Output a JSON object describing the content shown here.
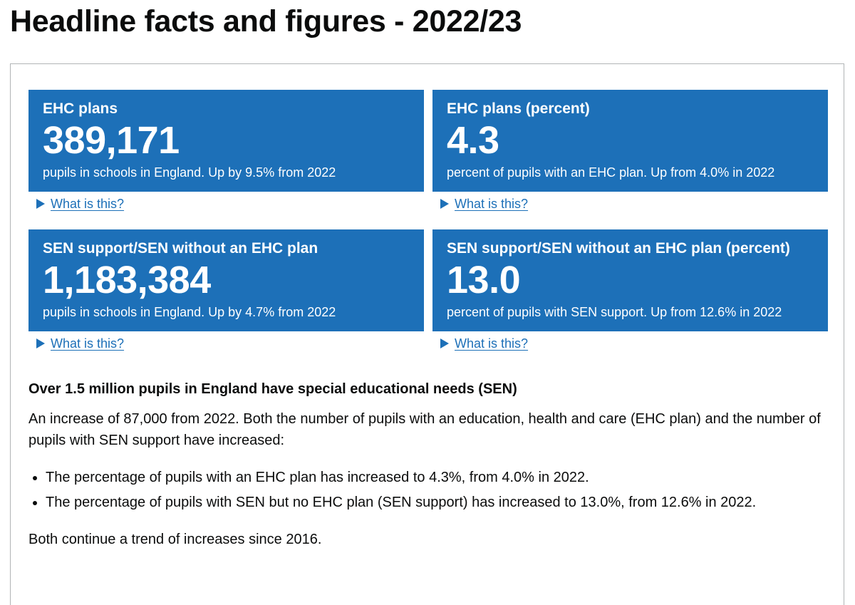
{
  "page": {
    "title": "Headline facts and figures - 2022/23"
  },
  "tiles": [
    {
      "title": "EHC plans",
      "value": "389,171",
      "description": "pupils in schools in England. Up by 9.5% from 2022",
      "details_label": "What is this?"
    },
    {
      "title": "EHC plans (percent)",
      "value": "4.3",
      "description": "percent of pupils with an EHC plan. Up from 4.0% in 2022",
      "details_label": "What is this?"
    },
    {
      "title": "SEN support/SEN without an EHC plan",
      "value": "1,183,384",
      "description": "pupils in schools in England. Up by 4.7% from 2022",
      "details_label": "What is this?"
    },
    {
      "title": "SEN support/SEN without an EHC plan (percent)",
      "value": "13.0",
      "description": "percent of pupils with SEN support. Up from 12.6% in 2022",
      "details_label": "What is this?"
    }
  ],
  "summary": {
    "heading": "Over 1.5 million pupils in England have special educational needs (SEN)",
    "intro": "An increase of 87,000 from 2022. Both the number of pupils with an education, health and care (EHC plan) and the number of pupils with SEN support have increased:",
    "bullets": [
      "The percentage of pupils with an EHC plan has increased to 4.3%, from 4.0% in 2022.",
      "The percentage of pupils with SEN but no EHC plan (SEN support) has increased to 13.0%, from 12.6% in 2022."
    ],
    "closing": "Both continue a trend of increases since 2016."
  },
  "colors": {
    "tile_background": "#1d70b8",
    "link": "#1d70b8",
    "text": "#0b0c0c",
    "border": "#b1b4b6"
  }
}
